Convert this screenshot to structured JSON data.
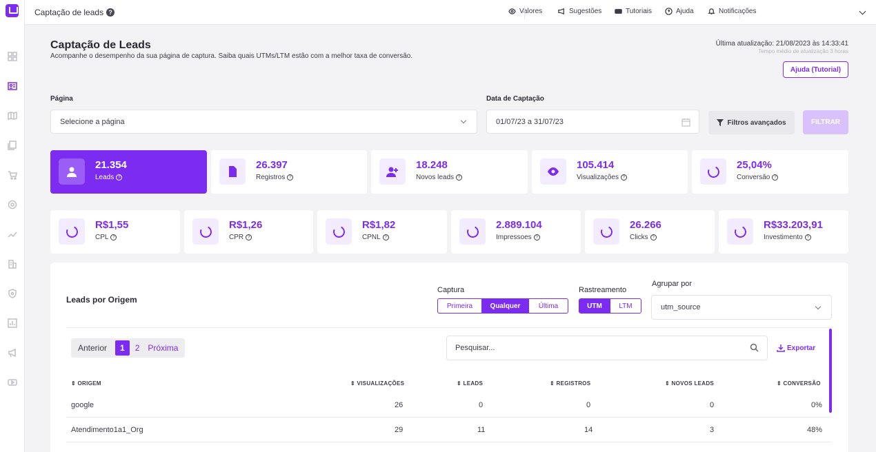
{
  "topbar": {
    "title": "Captação de leads",
    "nav": [
      "Valores",
      "Sugestões",
      "Tutoriais",
      "Ajuda",
      "Notificações"
    ]
  },
  "header": {
    "title": "Captação de Leads",
    "subtitle": "Acompanhe o desempenho da sua página de captura. Saiba quais UTMs/LTM estão com a melhor taxa de conversão.",
    "last_update": "Última atualização: 21/08/2023 às 14:33:41",
    "avg_update": "Tempo médio de atualização 3 horas",
    "help_button": "Ajuda (Tutorial)"
  },
  "filters": {
    "page_label": "Página",
    "page_value": "Selecione a página",
    "date_label": "Data de Captação",
    "date_value": "01/07/23 a 31/07/23",
    "advanced": "Filtros avançados",
    "apply": "FILTRAR"
  },
  "kpis_row1": [
    {
      "value": "21.354",
      "label": "Leads",
      "icon": "user-icon",
      "active": true
    },
    {
      "value": "26.397",
      "label": "Registros",
      "icon": "file-icon",
      "active": false
    },
    {
      "value": "18.248",
      "label": "Novos leads",
      "icon": "user-plus-icon",
      "active": false
    },
    {
      "value": "105.414",
      "label": "Visualizações",
      "icon": "eye-icon",
      "active": false
    },
    {
      "value": "25,04%",
      "label": "Conversão",
      "icon": "ring-icon",
      "active": false
    }
  ],
  "kpis_row2": [
    {
      "value": "R$1,55",
      "label": "CPL"
    },
    {
      "value": "R$1,26",
      "label": "CPR"
    },
    {
      "value": "R$1,82",
      "label": "CPNL"
    },
    {
      "value": "2.889.104",
      "label": "Impressoes"
    },
    {
      "value": "26.266",
      "label": "Clicks"
    },
    {
      "value": "R$33.203,91",
      "label": "Investimento"
    }
  ],
  "leads_panel": {
    "title": "Leads por Origem",
    "captura_label": "Captura",
    "captura_options": [
      "Primeira",
      "Qualquer",
      "Última"
    ],
    "captura_selected": "Qualquer",
    "rastreamento_label": "Rastreamento",
    "rastreamento_options": [
      "UTM",
      "LTM"
    ],
    "rastreamento_selected": "UTM",
    "agrupar_label": "Agrupar por",
    "agrupar_value": "utm_source",
    "pager": {
      "prev": "Anterior",
      "pages": [
        "1",
        "2"
      ],
      "current": "1",
      "next": "Próxima"
    },
    "search_placeholder": "Pesquisar...",
    "export": "Exportar",
    "columns": [
      "⇕ ORIGEM",
      "⇕ VISUALIZAÇÕES",
      "⇕ LEADS",
      "⇕ REGISTROS",
      "⇕ NOVOS LEADS",
      "⇕ CONVERSÃO"
    ],
    "rows": [
      [
        "google",
        "26",
        "0",
        "0",
        "0",
        "0%"
      ],
      [
        "Atendimento1a1_Org",
        "29",
        "11",
        "14",
        "3",
        "48%"
      ]
    ]
  },
  "colors": {
    "accent": "#7c2cf0",
    "accent_light": "#f3ecfe"
  }
}
